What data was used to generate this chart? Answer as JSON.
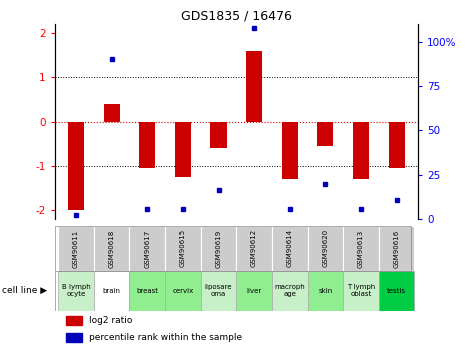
{
  "title": "GDS1835 / 16476",
  "samples": [
    "GSM90611",
    "GSM90618",
    "GSM90617",
    "GSM90615",
    "GSM90619",
    "GSM90612",
    "GSM90614",
    "GSM90620",
    "GSM90613",
    "GSM90616"
  ],
  "cell_lines": [
    "B lymph\nocyte",
    "brain",
    "breast",
    "cervix",
    "liposare\noma",
    "liver",
    "macroph\nage",
    "skin",
    "T lymph\noblast",
    "testis"
  ],
  "cell_line_colors": [
    "#c8f0c8",
    "#ffffff",
    "#90ee90",
    "#90ee90",
    "#c8f0c8",
    "#90ee90",
    "#c8f0c8",
    "#90ee90",
    "#c8f0c8",
    "#00cc44"
  ],
  "log2_ratio": [
    -2.0,
    0.4,
    -1.05,
    -1.25,
    -0.6,
    1.6,
    -1.3,
    -0.55,
    -1.3,
    -1.05
  ],
  "percentile_rank": [
    2,
    82,
    5,
    5,
    15,
    98,
    5,
    18,
    5,
    10
  ],
  "ylim": [
    -2.2,
    2.2
  ],
  "right_yticks": [
    0,
    25,
    50,
    75,
    100
  ],
  "right_yticklabels": [
    "0",
    "25",
    "50",
    "75",
    "100%"
  ],
  "left_yticks": [
    -2,
    -1,
    0,
    1,
    2
  ],
  "bar_color": "#cc0000",
  "dot_color": "#0000bb",
  "bar_width": 0.45,
  "cell_line_label": "cell line ▶"
}
